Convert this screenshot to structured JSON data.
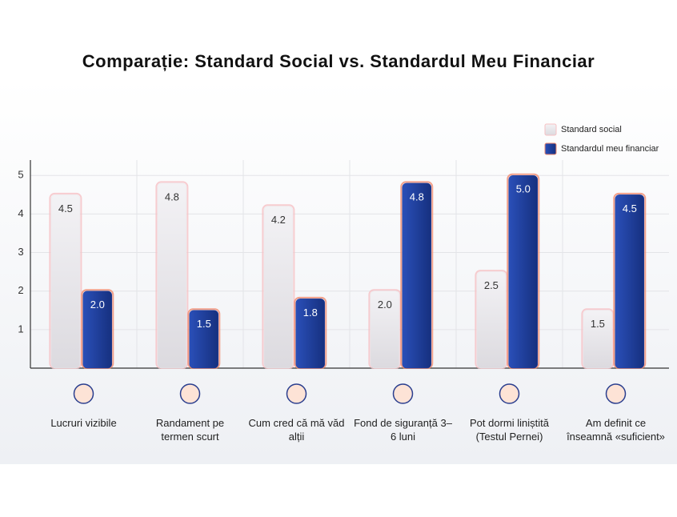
{
  "chart_data": {
    "type": "bar",
    "title": "Comparație: Standard Social vs. Standardul Meu Financiar",
    "categories": [
      "Lucruri vizibile",
      "Randament pe termen scurt",
      "Cum cred că mă văd alții",
      "Fond de siguranță 3–6 luni",
      "Pot dormi liniștită (Testul Pernei)",
      "Am definit ce înseamnă «suficient»"
    ],
    "series": [
      {
        "name": "Standard social",
        "color": "#e9e7eb",
        "values": [
          4.5,
          4.8,
          4.2,
          2.0,
          2.5,
          1.5
        ],
        "value_labels": [
          "4.5",
          "4.8",
          "4.2",
          "2.0",
          "2.5",
          "1.5"
        ]
      },
      {
        "name": "Standardul meu financiar",
        "color": "#1f3f9c",
        "values": [
          2.0,
          1.5,
          1.8,
          4.8,
          5.0,
          4.5
        ],
        "value_labels": [
          "2.0",
          "1.5",
          "1.8",
          "4.8",
          "5.0",
          "4.5"
        ]
      }
    ],
    "ylim": [
      0,
      5.4
    ],
    "yticks": [
      1,
      2,
      3,
      4,
      5
    ],
    "grid": true,
    "legend": "upper right"
  }
}
